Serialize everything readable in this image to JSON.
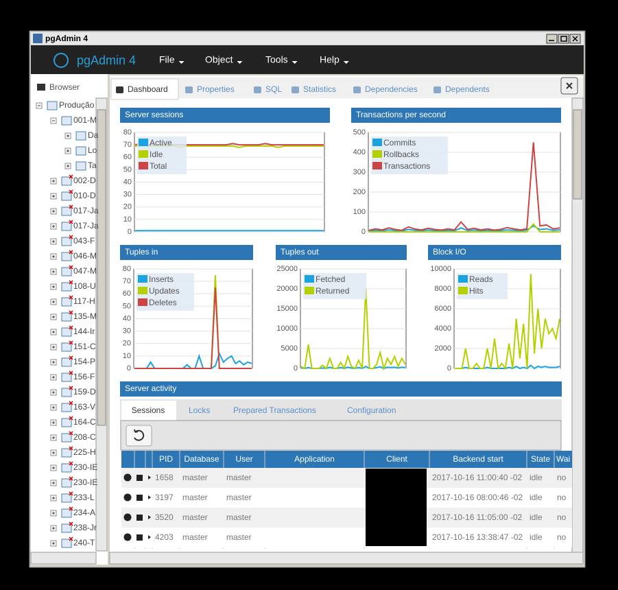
{
  "window": {
    "title": "pgAdmin 4"
  },
  "navbar": {
    "brand": "pgAdmin 4",
    "menus": [
      "File",
      "Object",
      "Tools",
      "Help"
    ]
  },
  "browser": {
    "title": "Browser",
    "tree": [
      {
        "label": "Produção",
        "children": [
          {
            "label": "001-M",
            "children": [
              {
                "label": "Da"
              },
              {
                "label": "Lo"
              },
              {
                "label": "Ta"
              }
            ]
          },
          {
            "label": "002-D"
          },
          {
            "label": "010-D"
          },
          {
            "label": "017-Ja"
          },
          {
            "label": "017-Ja"
          },
          {
            "label": "043-F"
          },
          {
            "label": "046-M"
          },
          {
            "label": "047-M"
          },
          {
            "label": "108-U"
          },
          {
            "label": "117-H"
          },
          {
            "label": "135-M"
          },
          {
            "label": "144-Ir"
          },
          {
            "label": "151-C"
          },
          {
            "label": "154-P"
          },
          {
            "label": "156-F"
          },
          {
            "label": "159-D"
          },
          {
            "label": "163-V"
          },
          {
            "label": "164-C"
          },
          {
            "label": "208-C"
          },
          {
            "label": "225-H"
          },
          {
            "label": "230-IE"
          },
          {
            "label": "230-IE"
          },
          {
            "label": "233-L"
          },
          {
            "label": "234-A"
          },
          {
            "label": "238-Jr"
          },
          {
            "label": "240-T"
          }
        ]
      }
    ]
  },
  "tabs": [
    "Dashboard",
    "Properties",
    "SQL",
    "Statistics",
    "Dependencies",
    "Dependents"
  ],
  "dashboard": {
    "charts": [
      {
        "type": "line",
        "title": "Server sessions",
        "ylim": [
          0,
          80
        ],
        "yticks": [
          0,
          10,
          20,
          30,
          40,
          50,
          60,
          70,
          80
        ],
        "series": [
          {
            "name": "Active",
            "color": "#1aa3e0",
            "values": [
              1,
              1,
              1,
              1,
              1,
              1,
              1,
              1,
              1,
              1,
              1,
              1,
              1,
              1,
              1,
              1,
              1,
              1,
              1,
              1,
              1,
              1,
              1,
              1,
              1,
              1,
              1,
              1,
              1,
              1
            ]
          },
          {
            "name": "Idle",
            "color": "#b5d000",
            "values": [
              69,
              69,
              69,
              69,
              69,
              69,
              69,
              68,
              69,
              69,
              69,
              69,
              69,
              69,
              69,
              69,
              68,
              69,
              69,
              69,
              69,
              69,
              68,
              69,
              69,
              69,
              69,
              69,
              69,
              69
            ]
          },
          {
            "name": "Total",
            "color": "#cc4444",
            "values": [
              70,
              71,
              70,
              70,
              70,
              70,
              70,
              70,
              70,
              70,
              70,
              70,
              70,
              70,
              70,
              71,
              70,
              70,
              70,
              70,
              71,
              70,
              70,
              70,
              70,
              70,
              70,
              70,
              70,
              70
            ]
          }
        ]
      },
      {
        "type": "line",
        "title": "Transactions per second",
        "ylim": [
          0,
          500
        ],
        "yticks": [
          0,
          100,
          200,
          300,
          400,
          500
        ],
        "series": [
          {
            "name": "Commits",
            "color": "#1aa3e0",
            "values": [
              5,
              8,
              6,
              10,
              7,
              5,
              12,
              8,
              6,
              9,
              7,
              5,
              8,
              6,
              20,
              7,
              9,
              6,
              8,
              5,
              7,
              10,
              8,
              6,
              9,
              30,
              12,
              15,
              8,
              10
            ]
          },
          {
            "name": "Rollbacks",
            "color": "#b5d000",
            "values": [
              0,
              0,
              0,
              0,
              0,
              0,
              0,
              0,
              0,
              0,
              0,
              0,
              0,
              0,
              0,
              0,
              0,
              0,
              0,
              0,
              0,
              0,
              0,
              0,
              0,
              40,
              0,
              0,
              0,
              0
            ]
          },
          {
            "name": "Transactions",
            "color": "#cc4444",
            "values": [
              8,
              15,
              10,
              20,
              12,
              8,
              25,
              14,
              10,
              18,
              12,
              9,
              15,
              10,
              50,
              12,
              18,
              10,
              15,
              9,
              12,
              22,
              15,
              10,
              15,
              450,
              30,
              35,
              15,
              20
            ]
          }
        ]
      },
      {
        "type": "line",
        "title": "Tuples in",
        "ylim": [
          0,
          80
        ],
        "yticks": [
          0,
          10,
          20,
          30,
          40,
          50,
          60,
          70,
          80
        ],
        "series": [
          {
            "name": "Inserts",
            "color": "#1aa3e0",
            "values": [
              0,
              0,
              0,
              0,
              5,
              0,
              0,
              0,
              0,
              0,
              0,
              0,
              0,
              3,
              0,
              0,
              10,
              0,
              0,
              0,
              2,
              12,
              5,
              8,
              10,
              4,
              6,
              3,
              5,
              4
            ]
          },
          {
            "name": "Updates",
            "color": "#b5d000",
            "values": [
              0,
              0,
              0,
              0,
              0,
              0,
              0,
              0,
              0,
              0,
              0,
              0,
              0,
              0,
              0,
              0,
              0,
              0,
              0,
              0,
              75,
              0,
              0,
              0,
              0,
              0,
              0,
              0,
              0,
              0
            ]
          },
          {
            "name": "Deletes",
            "color": "#cc4444",
            "values": [
              0,
              0,
              0,
              0,
              0,
              0,
              0,
              0,
              0,
              0,
              0,
              0,
              0,
              0,
              0,
              0,
              0,
              0,
              0,
              0,
              65,
              0,
              0,
              0,
              0,
              0,
              0,
              0,
              0,
              0
            ]
          }
        ]
      },
      {
        "type": "line",
        "title": "Tuples out",
        "ylim": [
          0,
          25000
        ],
        "yticks": [
          0,
          5000,
          10000,
          15000,
          20000,
          25000
        ],
        "series": [
          {
            "name": "Fetched",
            "color": "#1aa3e0",
            "values": [
              100,
              0,
              200,
              0,
              0,
              0,
              100,
              0,
              300,
              0,
              0,
              200,
              0,
              300,
              100,
              0,
              200,
              0,
              500,
              0,
              0,
              200,
              400,
              0,
              300,
              200,
              300,
              100,
              300,
              200
            ]
          },
          {
            "name": "Returned",
            "color": "#b5d000",
            "values": [
              500,
              0,
              6000,
              0,
              0,
              0,
              800,
              0,
              2500,
              0,
              0,
              1500,
              0,
              3000,
              500,
              0,
              2000,
              0,
              20000,
              0,
              0,
              1000,
              4000,
              0,
              2500,
              1000,
              3000,
              500,
              2500,
              1000
            ]
          }
        ]
      },
      {
        "type": "line",
        "title": "Block I/O",
        "ylim": [
          0,
          10000
        ],
        "yticks": [
          0,
          2000,
          4000,
          6000,
          8000,
          10000
        ],
        "series": [
          {
            "name": "Reads",
            "color": "#1aa3e0",
            "values": [
              0,
              0,
              0,
              100,
              0,
              0,
              0,
              0,
              0,
              100,
              0,
              0,
              0,
              0,
              0,
              100,
              0,
              200,
              0,
              100,
              0,
              300,
              0,
              200,
              100,
              200,
              100,
              100,
              100,
              200
            ]
          },
          {
            "name": "Hits",
            "color": "#b5d000",
            "values": [
              0,
              0,
              0,
              2000,
              0,
              0,
              500,
              0,
              0,
              2000,
              0,
              3000,
              0,
              500,
              0,
              2500,
              0,
              5000,
              1000,
              4500,
              0,
              9500,
              1500,
              6000,
              2000,
              5000,
              3500,
              4000,
              3000,
              5000
            ]
          }
        ]
      }
    ],
    "activity": {
      "title": "Server activity",
      "tabs": [
        "Sessions",
        "Locks",
        "Prepared Transactions",
        "Configuration"
      ],
      "columns": [
        "PID",
        "Database",
        "User",
        "Application",
        "Client",
        "Backend start",
        "State",
        "Wai"
      ],
      "rows": [
        {
          "pid": "1658",
          "database": "master",
          "user": "master",
          "backend_start": "2017-10-16 11:00:40 -02",
          "state": "idle",
          "wait": "no"
        },
        {
          "pid": "3197",
          "database": "master",
          "user": "master",
          "backend_start": "2017-10-16 08:00:46 -02",
          "state": "idle",
          "wait": "no"
        },
        {
          "pid": "3520",
          "database": "master",
          "user": "master",
          "backend_start": "2017-10-16 11:05:00 -02",
          "state": "idle",
          "wait": "no"
        },
        {
          "pid": "4203",
          "database": "master",
          "user": "master",
          "backend_start": "2017-10-16 13:38:47 -02",
          "state": "idle",
          "wait": "no"
        }
      ]
    }
  }
}
